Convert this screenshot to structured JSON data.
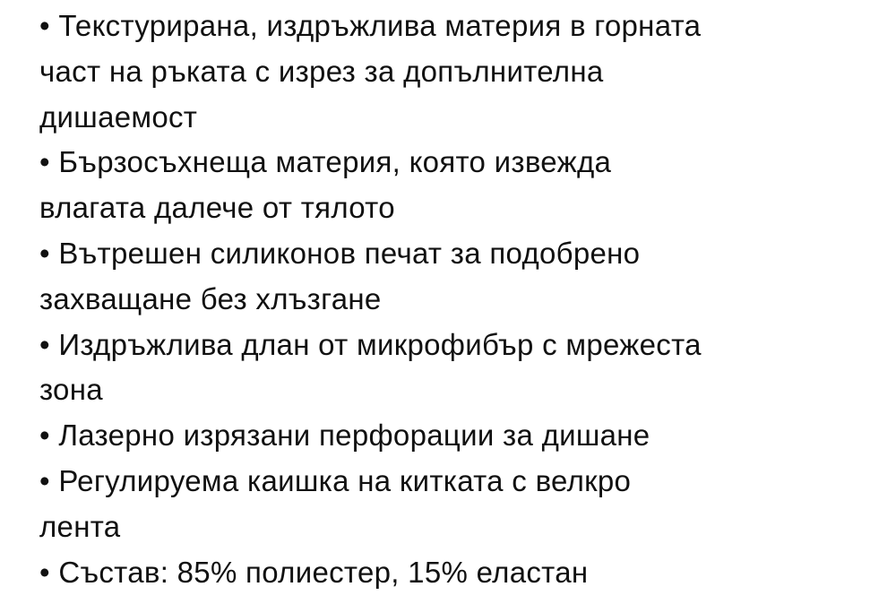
{
  "lines": [
    "• Текстурирана, издръжлива материя в горната",
    "част на ръката с изрез за допълнителна",
    "дишаемост",
    "• Бързосъхнеща материя, която извежда",
    "влагата далече от тялото",
    "• Вътрешен силиконов печат за подобрено",
    "захващане без хлъзгане",
    "• Издръжлива длан от микрофибър с мрежеста",
    "зона",
    "• Лазерно изрязани перфорации за дишане",
    "• Регулируема каишка на китката с велкро",
    "лента",
    "• Състав: 85% полиестер, 15% еластан"
  ]
}
